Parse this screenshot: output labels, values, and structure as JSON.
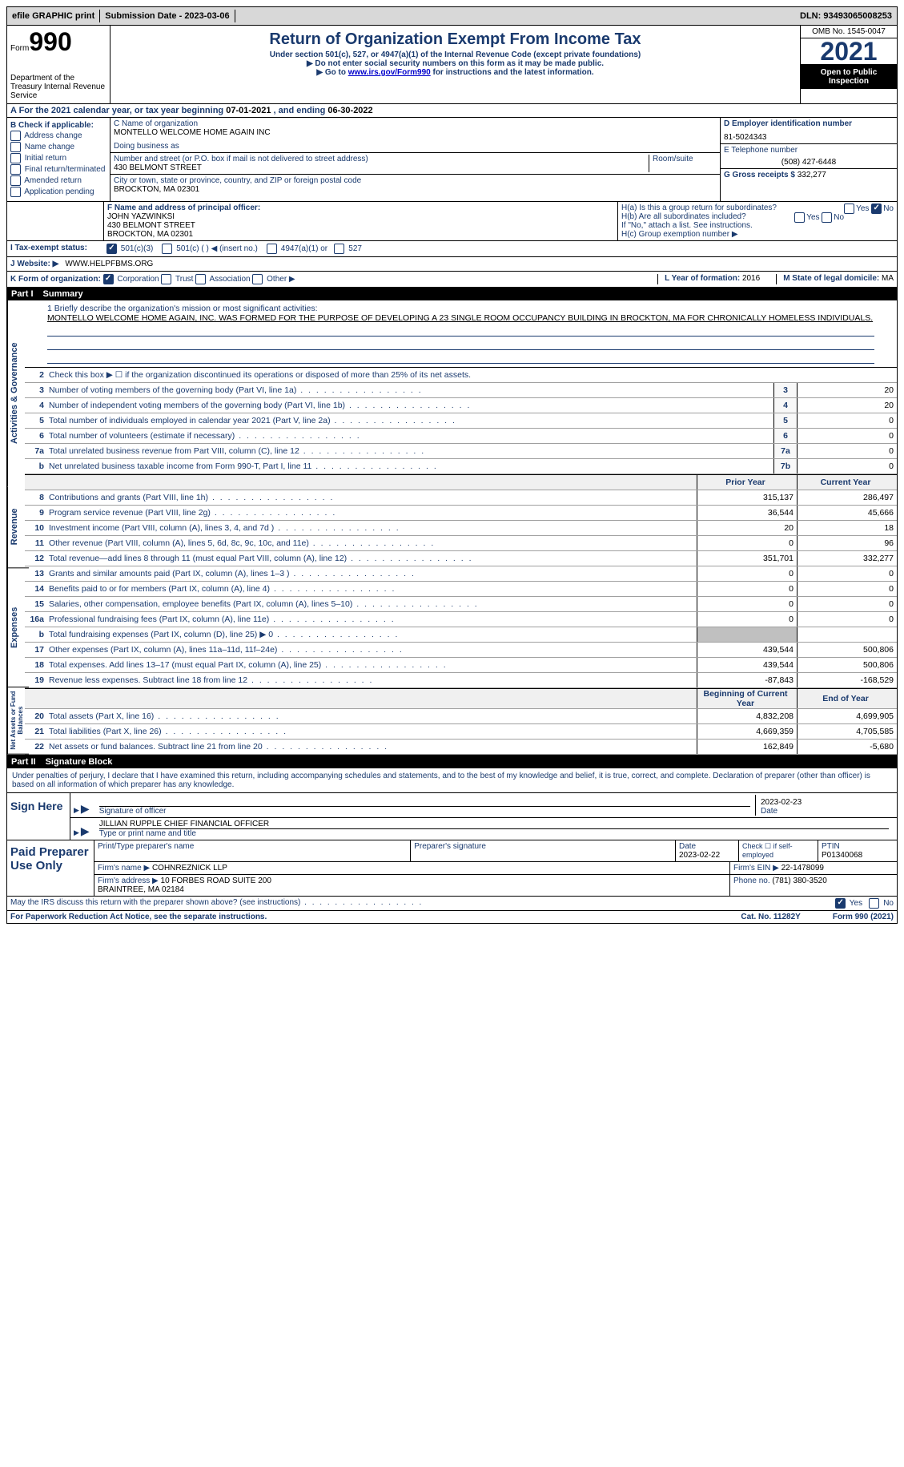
{
  "topbar": {
    "efile": "efile GRAPHIC print",
    "submission": "Submission Date - 2023-03-06",
    "dln": "DLN: 93493065008253"
  },
  "header": {
    "form_prefix": "Form",
    "form_num": "990",
    "dept": "Department of the Treasury\nInternal Revenue Service",
    "title": "Return of Organization Exempt From Income Tax",
    "sub1": "Under section 501(c), 527, or 4947(a)(1) of the Internal Revenue Code (except private foundations)",
    "sub2": "▶ Do not enter social security numbers on this form as it may be made public.",
    "sub3_pre": "▶ Go to ",
    "sub3_link": "www.irs.gov/Form990",
    "sub3_post": " for instructions and the latest information.",
    "omb": "OMB No. 1545-0047",
    "year": "2021",
    "inspect": "Open to Public Inspection"
  },
  "cal_year": {
    "label_a": "A For the 2021 calendar year, or tax year beginning ",
    "begin": "07-01-2021",
    "mid": " , and ending ",
    "end": "06-30-2022"
  },
  "col_b": {
    "label": "B Check if applicable:",
    "opts": [
      "Address change",
      "Name change",
      "Initial return",
      "Final return/terminated",
      "Amended return",
      "Application pending"
    ]
  },
  "col_c": {
    "name_label": "C Name of organization",
    "name": "MONTELLO WELCOME HOME AGAIN INC",
    "dba_label": "Doing business as",
    "street_label": "Number and street (or P.O. box if mail is not delivered to street address)",
    "street": "430 BELMONT STREET",
    "room_label": "Room/suite",
    "city_label": "City or town, state or province, country, and ZIP or foreign postal code",
    "city": "BROCKTON, MA  02301"
  },
  "col_d": {
    "ein_label": "D Employer identification number",
    "ein": "81-5024343",
    "phone_label": "E Telephone number",
    "phone": "(508) 427-6448",
    "gross_label": "G Gross receipts $",
    "gross": "332,277"
  },
  "section_f": {
    "label": "F Name and address of principal officer:",
    "name": "JOHN YAZWINKSI",
    "addr1": "430 BELMONT STREET",
    "addr2": "BROCKTON, MA  02301"
  },
  "section_h": {
    "ha": "H(a) Is this a group return for subordinates?",
    "hb": "H(b) Are all subordinates included?",
    "hb_note": "If \"No,\" attach a list. See instructions.",
    "hc": "H(c) Group exemption number ▶",
    "yes": "Yes",
    "no": "No"
  },
  "row_i": {
    "label": "I   Tax-exempt status:",
    "o1": "501(c)(3)",
    "o2": "501(c) (  ) ◀ (insert no.)",
    "o3": "4947(a)(1) or",
    "o4": "527"
  },
  "row_j": {
    "label": "J   Website: ▶",
    "val": "WWW.HELPFBMS.ORG"
  },
  "row_k": {
    "label": "K Form of organization:",
    "o1": "Corporation",
    "o2": "Trust",
    "o3": "Association",
    "o4": "Other ▶",
    "l_label": "L Year of formation:",
    "l_val": "2016",
    "m_label": "M State of legal domicile:",
    "m_val": "MA"
  },
  "parts": {
    "p1": "Part I",
    "p1_title": "Summary",
    "p2": "Part II",
    "p2_title": "Signature Block"
  },
  "mission": {
    "label": "1  Briefly describe the organization's mission or most significant activities:",
    "text": "MONTELLO WELCOME HOME AGAIN, INC. WAS FORMED FOR THE PURPOSE OF DEVELOPING A 23 SINGLE ROOM OCCUPANCY BUILDING IN BROCKTON, MA FOR CHRONICALLY HOMELESS INDIVIDUALS."
  },
  "gov_lines": [
    {
      "n": "2",
      "d": "Check this box ▶ ☐ if the organization discontinued its operations or disposed of more than 25% of its net assets."
    },
    {
      "n": "3",
      "d": "Number of voting members of the governing body (Part VI, line 1a)",
      "box": "3",
      "v": "20"
    },
    {
      "n": "4",
      "d": "Number of independent voting members of the governing body (Part VI, line 1b)",
      "box": "4",
      "v": "20"
    },
    {
      "n": "5",
      "d": "Total number of individuals employed in calendar year 2021 (Part V, line 2a)",
      "box": "5",
      "v": "0"
    },
    {
      "n": "6",
      "d": "Total number of volunteers (estimate if necessary)",
      "box": "6",
      "v": "0"
    },
    {
      "n": "7a",
      "d": "Total unrelated business revenue from Part VIII, column (C), line 12",
      "box": "7a",
      "v": "0"
    },
    {
      "n": "b",
      "d": "Net unrelated business taxable income from Form 990-T, Part I, line 11",
      "box": "7b",
      "v": "0"
    }
  ],
  "rev_head": {
    "prior": "Prior Year",
    "current": "Current Year"
  },
  "rev_lines": [
    {
      "n": "8",
      "d": "Contributions and grants (Part VIII, line 1h)",
      "p": "315,137",
      "c": "286,497"
    },
    {
      "n": "9",
      "d": "Program service revenue (Part VIII, line 2g)",
      "p": "36,544",
      "c": "45,666"
    },
    {
      "n": "10",
      "d": "Investment income (Part VIII, column (A), lines 3, 4, and 7d )",
      "p": "20",
      "c": "18"
    },
    {
      "n": "11",
      "d": "Other revenue (Part VIII, column (A), lines 5, 6d, 8c, 9c, 10c, and 11e)",
      "p": "0",
      "c": "96"
    },
    {
      "n": "12",
      "d": "Total revenue—add lines 8 through 11 (must equal Part VIII, column (A), line 12)",
      "p": "351,701",
      "c": "332,277"
    }
  ],
  "exp_lines": [
    {
      "n": "13",
      "d": "Grants and similar amounts paid (Part IX, column (A), lines 1–3 )",
      "p": "0",
      "c": "0"
    },
    {
      "n": "14",
      "d": "Benefits paid to or for members (Part IX, column (A), line 4)",
      "p": "0",
      "c": "0"
    },
    {
      "n": "15",
      "d": "Salaries, other compensation, employee benefits (Part IX, column (A), lines 5–10)",
      "p": "0",
      "c": "0"
    },
    {
      "n": "16a",
      "d": "Professional fundraising fees (Part IX, column (A), line 11e)",
      "p": "0",
      "c": "0"
    },
    {
      "n": "b",
      "d": "Total fundraising expenses (Part IX, column (D), line 25) ▶ 0",
      "shade": true
    },
    {
      "n": "17",
      "d": "Other expenses (Part IX, column (A), lines 11a–11d, 11f–24e)",
      "p": "439,544",
      "c": "500,806"
    },
    {
      "n": "18",
      "d": "Total expenses. Add lines 13–17 (must equal Part IX, column (A), line 25)",
      "p": "439,544",
      "c": "500,806"
    },
    {
      "n": "19",
      "d": "Revenue less expenses. Subtract line 18 from line 12",
      "p": "-87,843",
      "c": "-168,529"
    }
  ],
  "net_head": {
    "prior": "Beginning of Current Year",
    "current": "End of Year"
  },
  "net_lines": [
    {
      "n": "20",
      "d": "Total assets (Part X, line 16)",
      "p": "4,832,208",
      "c": "4,699,905"
    },
    {
      "n": "21",
      "d": "Total liabilities (Part X, line 26)",
      "p": "4,669,359",
      "c": "4,705,585"
    },
    {
      "n": "22",
      "d": "Net assets or fund balances. Subtract line 21 from line 20",
      "p": "162,849",
      "c": "-5,680"
    }
  ],
  "vtabs": {
    "gov": "Activities & Governance",
    "rev": "Revenue",
    "exp": "Expenses",
    "net": "Net Assets or Fund Balances"
  },
  "sig": {
    "intro": "Under penalties of perjury, I declare that I have examined this return, including accompanying schedules and statements, and to the best of my knowledge and belief, it is true, correct, and complete. Declaration of preparer (other than officer) is based on all information of which preparer has any knowledge.",
    "sign_here": "Sign Here",
    "sig_label": "Signature of officer",
    "date_label": "Date",
    "date": "2023-02-23",
    "name": "JILLIAN RUPPLE CHIEF FINANCIAL OFFICER",
    "name_label": "Type or print name and title"
  },
  "paid": {
    "label": "Paid Preparer Use Only",
    "h1": "Print/Type preparer's name",
    "h2": "Preparer's signature",
    "h3": "Date",
    "date": "2023-02-22",
    "h4": "Check ☐ if self-employed",
    "h5": "PTIN",
    "ptin": "P01340068",
    "firm_label": "Firm's name ▶",
    "firm": "COHNREZNICK LLP",
    "ein_label": "Firm's EIN ▶",
    "ein": "22-1478099",
    "addr_label": "Firm's address ▶",
    "addr": "10 FORBES ROAD SUITE 200\nBRAINTREE, MA  02184",
    "phone_label": "Phone no.",
    "phone": "(781) 380-3520"
  },
  "footer": {
    "discuss": "May the IRS discuss this return with the preparer shown above? (see instructions)",
    "yes": "Yes",
    "no": "No",
    "paperwork": "For Paperwork Reduction Act Notice, see the separate instructions.",
    "cat": "Cat. No. 11282Y",
    "form": "Form 990 (2021)"
  }
}
